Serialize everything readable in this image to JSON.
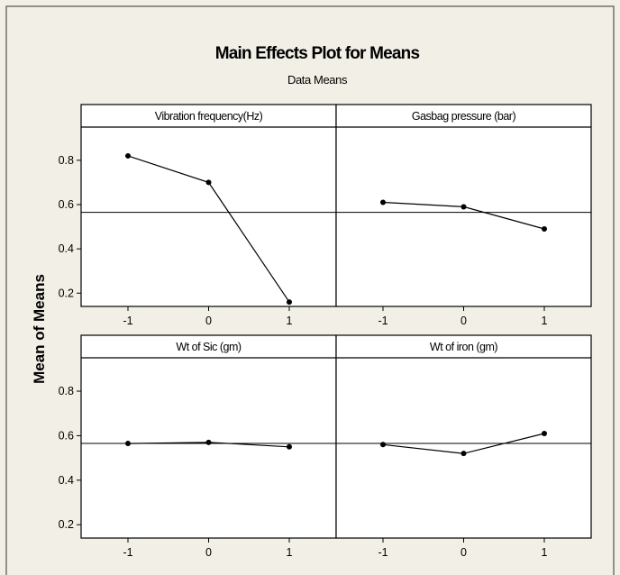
{
  "colors": {
    "background": "#f2efe6",
    "plot_background": "#ffffff",
    "frame": "#000000",
    "line": "#000000"
  },
  "chart_data": {
    "type": "line",
    "title": "Main Effects Plot for Means",
    "subtitle": "Data Means",
    "ylabel": "Mean of Means",
    "grand_mean": 0.565,
    "ylim": [
      0.14,
      0.95
    ],
    "yticks": [
      0.2,
      0.4,
      0.6,
      0.8
    ],
    "x_ticks": [
      "-1",
      "0",
      "1"
    ],
    "grid": false,
    "panels": [
      {
        "title": "Vibration frequency(Hz)",
        "x": [
          -1,
          0,
          1
        ],
        "y": [
          0.82,
          0.7,
          0.16
        ]
      },
      {
        "title": "Gasbag pressure (bar)",
        "x": [
          -1,
          0,
          1
        ],
        "y": [
          0.61,
          0.59,
          0.49
        ]
      },
      {
        "title": "Wt of Sic      (gm)",
        "x": [
          -1,
          0,
          1
        ],
        "y": [
          0.565,
          0.57,
          0.55
        ]
      },
      {
        "title": "Wt of iron (gm)",
        "x": [
          -1,
          0,
          1
        ],
        "y": [
          0.56,
          0.52,
          0.61
        ]
      }
    ]
  }
}
